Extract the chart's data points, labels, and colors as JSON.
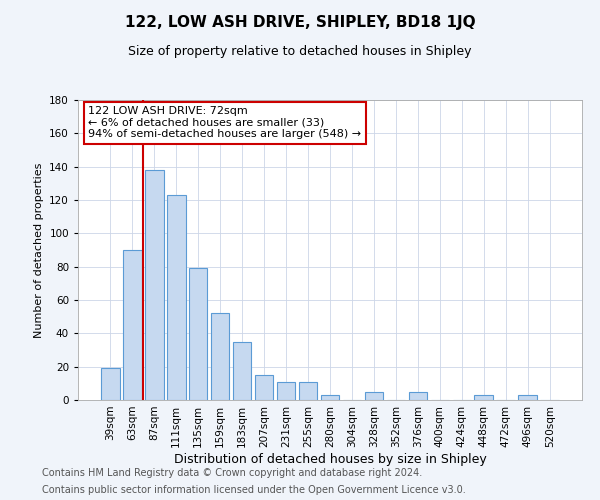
{
  "title": "122, LOW ASH DRIVE, SHIPLEY, BD18 1JQ",
  "subtitle": "Size of property relative to detached houses in Shipley",
  "xlabel": "Distribution of detached houses by size in Shipley",
  "ylabel": "Number of detached properties",
  "bar_labels": [
    "39sqm",
    "63sqm",
    "87sqm",
    "111sqm",
    "135sqm",
    "159sqm",
    "183sqm",
    "207sqm",
    "231sqm",
    "255sqm",
    "280sqm",
    "304sqm",
    "328sqm",
    "352sqm",
    "376sqm",
    "400sqm",
    "424sqm",
    "448sqm",
    "472sqm",
    "496sqm",
    "520sqm"
  ],
  "bar_values": [
    19,
    90,
    138,
    123,
    79,
    52,
    35,
    15,
    11,
    11,
    3,
    0,
    5,
    0,
    5,
    0,
    0,
    3,
    0,
    3,
    0
  ],
  "bar_color": "#c6d9f0",
  "bar_edge_color": "#5b9bd5",
  "highlight_color": "#cc0000",
  "red_line_x": 1.5,
  "ylim": [
    0,
    180
  ],
  "yticks": [
    0,
    20,
    40,
    60,
    80,
    100,
    120,
    140,
    160,
    180
  ],
  "annotation_title": "122 LOW ASH DRIVE: 72sqm",
  "annotation_line1": "← 6% of detached houses are smaller (33)",
  "annotation_line2": "94% of semi-detached houses are larger (548) →",
  "footer_line1": "Contains HM Land Registry data © Crown copyright and database right 2024.",
  "footer_line2": "Contains public sector information licensed under the Open Government Licence v3.0.",
  "background_color": "#f0f4fa",
  "plot_bg_color": "#ffffff",
  "title_fontsize": 11,
  "subtitle_fontsize": 9,
  "xlabel_fontsize": 9,
  "ylabel_fontsize": 8,
  "tick_fontsize": 7.5,
  "footer_fontsize": 7,
  "ann_fontsize": 8
}
